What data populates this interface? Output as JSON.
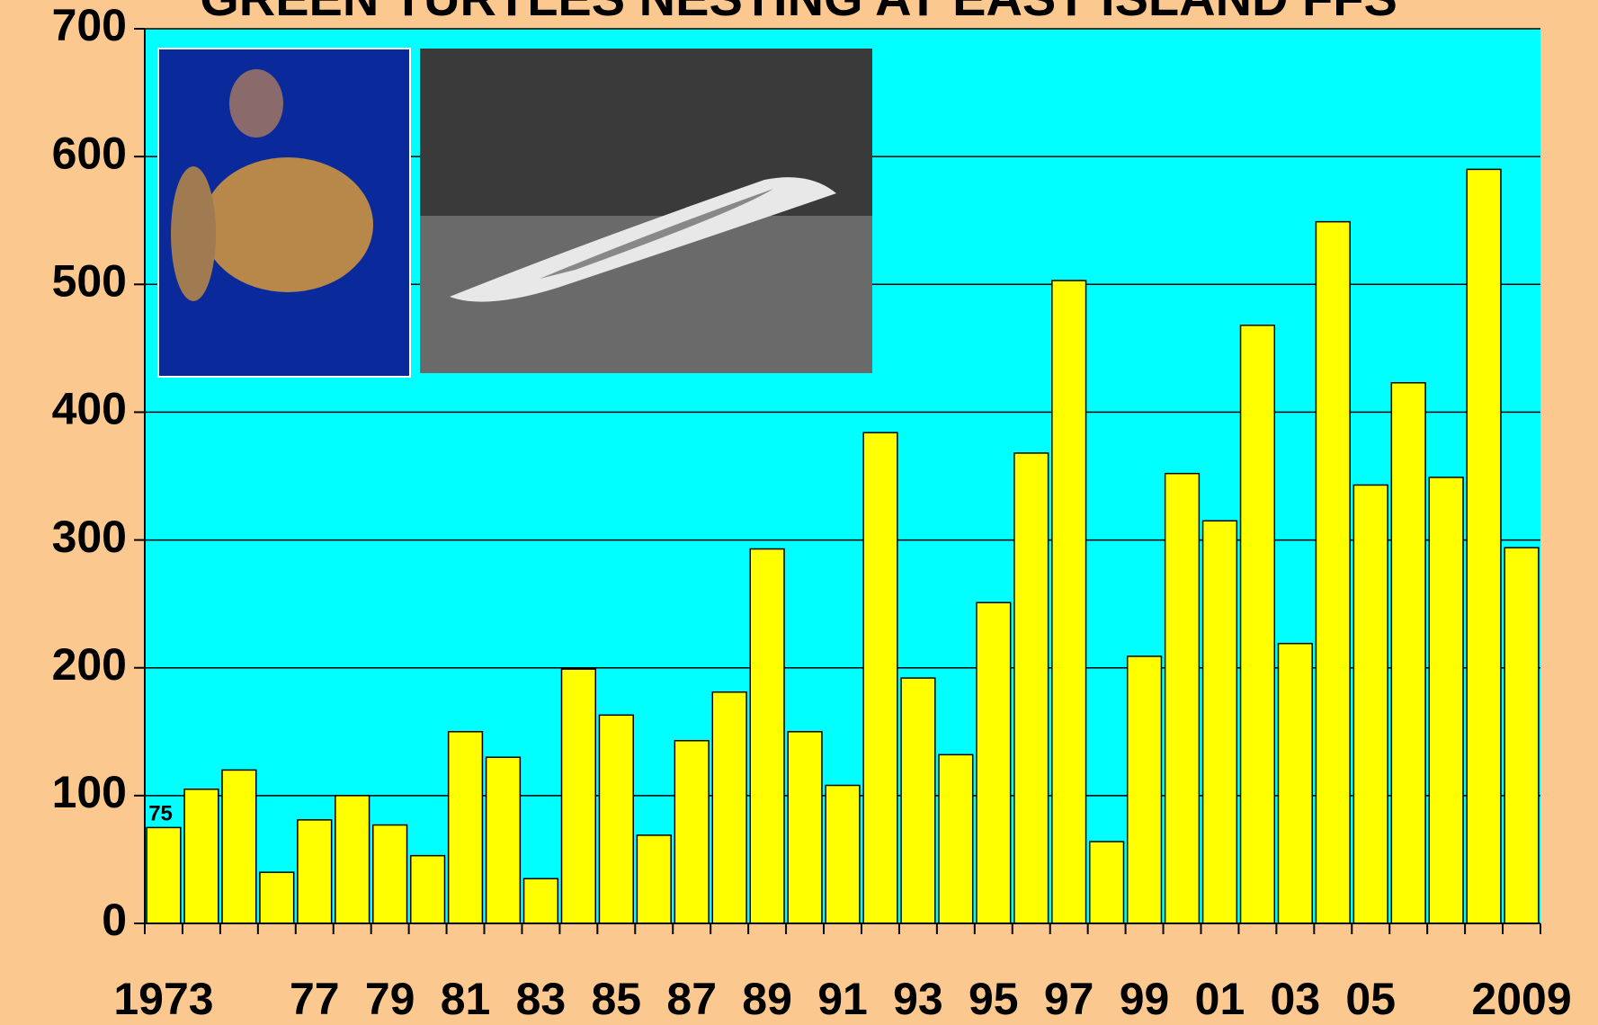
{
  "chart_data": {
    "type": "bar",
    "title": "GREEN TURTLES NESTING AT EAST ISLAND FFS",
    "categories": [
      "1973",
      null,
      null,
      null,
      "77",
      null,
      "79",
      null,
      "81",
      null,
      "83",
      null,
      "85",
      null,
      "87",
      null,
      "89",
      null,
      "91",
      null,
      "93",
      null,
      "95",
      null,
      "97",
      null,
      "99",
      null,
      "01",
      null,
      "03",
      null,
      "05",
      null,
      null,
      null,
      "2009"
    ],
    "values": [
      75,
      105,
      120,
      40,
      81,
      100,
      77,
      53,
      150,
      130,
      35,
      199,
      163,
      69,
      143,
      181,
      293,
      150,
      108,
      384,
      192,
      132,
      251,
      368,
      503,
      64,
      209,
      352,
      315,
      468,
      219,
      549,
      343,
      423,
      349,
      590,
      294
    ],
    "value_labels": [
      "75",
      null,
      null,
      null,
      null,
      null,
      null,
      null,
      null,
      null,
      null,
      null,
      null,
      null,
      null,
      null,
      null,
      null,
      null,
      null,
      null,
      null,
      null,
      null,
      null,
      null,
      null,
      null,
      null,
      null,
      null,
      null,
      null,
      null,
      null,
      null,
      null
    ],
    "color": "#ffff00",
    "ylim": [
      0,
      700
    ],
    "yticks": [
      0,
      100,
      200,
      300,
      400,
      500,
      600,
      700
    ],
    "grid": true
  }
}
